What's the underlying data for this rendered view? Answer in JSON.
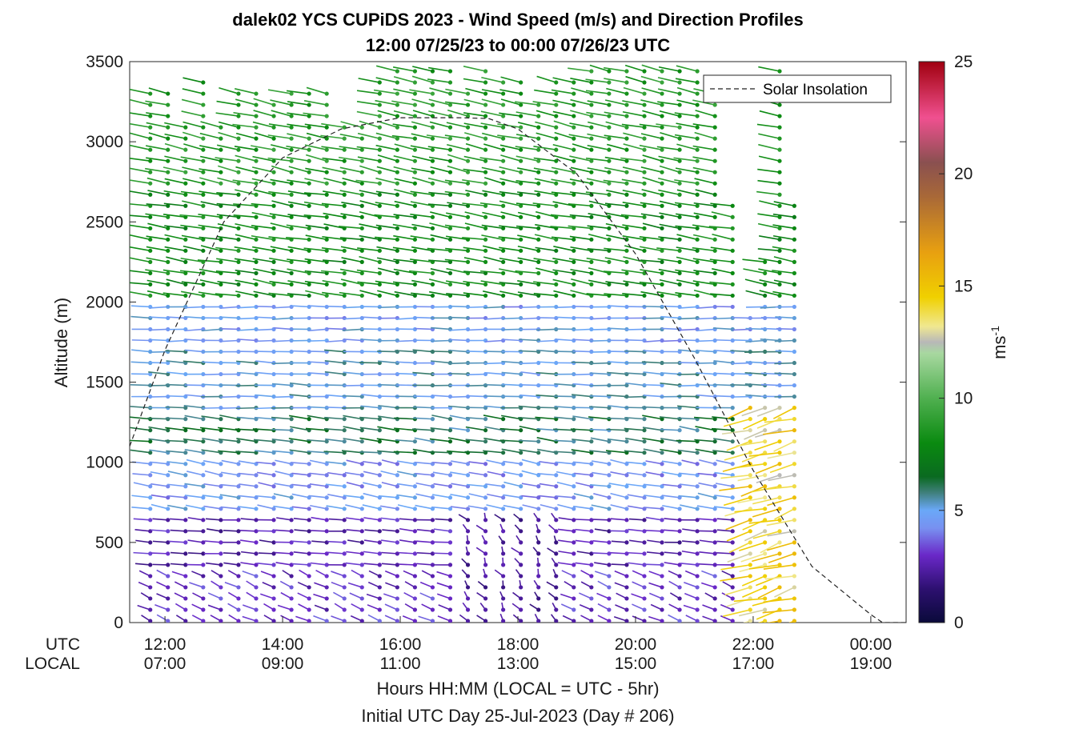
{
  "chart_data": {
    "type": "wind-profile",
    "title": "dalek02 YCS CUPiDS 2023 - Wind Speed (m/s) and Direction Profiles",
    "subtitle": "12:00 07/25/23 to 00:00 07/26/23  UTC",
    "ylabel": "Altitude (m)",
    "ylim": [
      0,
      3500
    ],
    "yticks": [
      "0",
      "500",
      "1000",
      "1500",
      "2000",
      "2500",
      "3000",
      "3500"
    ],
    "xlim_hours_utc": [
      11.4,
      24.6
    ],
    "xtick_rows": {
      "utc_label": "UTC",
      "local_label": "LOCAL",
      "utc": [
        "12:00",
        "14:00",
        "16:00",
        "18:00",
        "20:00",
        "22:00",
        "00:00"
      ],
      "local": [
        "07:00",
        "09:00",
        "11:00",
        "13:00",
        "15:00",
        "17:00",
        "19:00"
      ]
    },
    "xlabel": "Hours HH:MM  (LOCAL = UTC - 5hr)",
    "xlabel2": "Initial UTC Day 25-Jul-2023 (Day # 206)",
    "legend": {
      "entry": "Solar Insolation",
      "location": "top-right"
    },
    "colorbar": {
      "label": "ms-1",
      "range": [
        0,
        25
      ],
      "ticks": [
        "0",
        "5",
        "10",
        "15",
        "20",
        "25"
      ],
      "stops": [
        {
          "v": 0,
          "c": "#0a0a3a"
        },
        {
          "v": 1.5,
          "c": "#2d1070"
        },
        {
          "v": 3,
          "c": "#6a28c8"
        },
        {
          "v": 4.2,
          "c": "#7890f0"
        },
        {
          "v": 5,
          "c": "#6aa8f8"
        },
        {
          "v": 5.8,
          "c": "#3f7f7a"
        },
        {
          "v": 6.5,
          "c": "#0a6a20"
        },
        {
          "v": 8,
          "c": "#0a8a10"
        },
        {
          "v": 10,
          "c": "#50b050"
        },
        {
          "v": 12,
          "c": "#a8d8a0"
        },
        {
          "v": 12.5,
          "c": "#b8b8b8"
        },
        {
          "v": 13.2,
          "c": "#f0e890"
        },
        {
          "v": 14.5,
          "c": "#f0d000"
        },
        {
          "v": 16.5,
          "c": "#e8a010"
        },
        {
          "v": 19,
          "c": "#a86838"
        },
        {
          "v": 20.5,
          "c": "#8a5050"
        },
        {
          "v": 22.5,
          "c": "#f05090"
        },
        {
          "v": 24,
          "c": "#c02040"
        },
        {
          "v": 25,
          "c": "#a00010"
        }
      ]
    },
    "solar_insolation": {
      "x": [
        11.4,
        12,
        13,
        14,
        15,
        16,
        17,
        17.5,
        18,
        19,
        20,
        21,
        22,
        23,
        24,
        24.2,
        24.6
      ],
      "y": [
        1100,
        1700,
        2500,
        2900,
        3080,
        3150,
        3150,
        3145,
        3080,
        2800,
        2300,
        1650,
        950,
        350,
        50,
        0,
        0
      ]
    },
    "profiles": {
      "times_utc": [
        11.75,
        12.05,
        12.35,
        12.65,
        12.95,
        13.25,
        13.55,
        13.85,
        14.15,
        14.45,
        14.75,
        15.05,
        15.35,
        15.65,
        15.95,
        16.25,
        16.55,
        16.85,
        17.15,
        17.45,
        17.75,
        18.05,
        18.35,
        18.65,
        18.95,
        19.25,
        19.55,
        19.85,
        20.15,
        20.45,
        20.75,
        21.05,
        21.35,
        21.65,
        21.95,
        22.2,
        22.45,
        22.7
      ],
      "top_altitude_m": [
        3300,
        3300,
        3150,
        3430,
        3150,
        3300,
        3350,
        3280,
        3300,
        3350,
        3350,
        3100,
        3120,
        3420,
        3480,
        3480,
        3480,
        3480,
        3350,
        3500,
        3380,
        3380,
        3250,
        3370,
        3420,
        3480,
        3480,
        3480,
        3480,
        3480,
        3480,
        3480,
        3300,
        2650,
        1950,
        2250,
        3480,
        2600
      ],
      "altitude_step_m": 70,
      "bands": [
        {
          "from": 0,
          "to": 300,
          "speed": 3.0,
          "dir_deg": 225
        },
        {
          "from": 300,
          "to": 700,
          "speed": 2.6,
          "dir_deg": 260
        },
        {
          "from": 700,
          "to": 1000,
          "speed": 4.5,
          "dir_deg": 250
        },
        {
          "from": 1000,
          "to": 1300,
          "speed": 6.0,
          "dir_deg": 255
        },
        {
          "from": 1300,
          "to": 1700,
          "speed": 5.2,
          "dir_deg": 265
        },
        {
          "from": 1700,
          "to": 2000,
          "speed": 4.7,
          "dir_deg": 270
        },
        {
          "from": 2000,
          "to": 2700,
          "speed": 8.0,
          "dir_deg": 250
        },
        {
          "from": 2700,
          "to": 3500,
          "speed": 8.6,
          "dir_deg": 245
        }
      ],
      "late_day": {
        "from_hour_utc": 21.7,
        "speed": 14.0,
        "dir_deg": 300
      }
    }
  }
}
